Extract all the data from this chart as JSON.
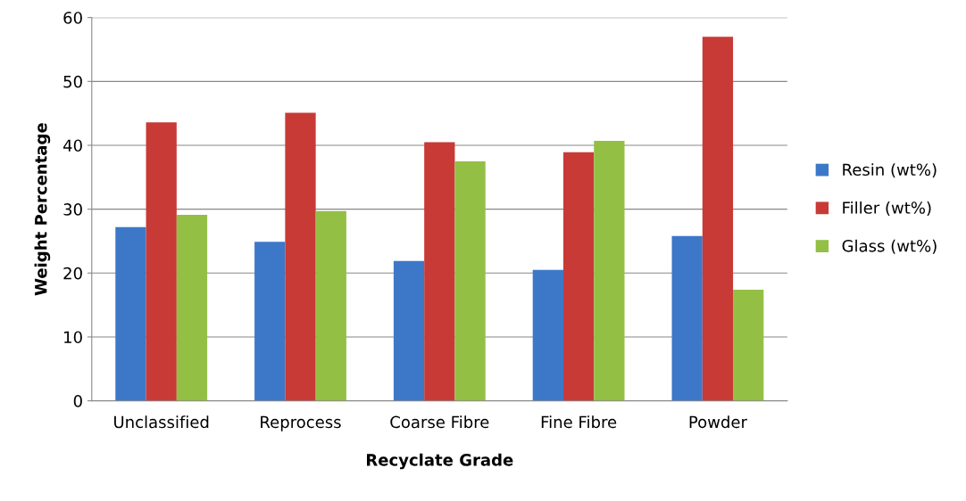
{
  "chart_data": {
    "type": "bar",
    "xlabel": "Recyclate Grade",
    "ylabel": "Weight Percentage",
    "categories": [
      "Unclassified",
      "Reprocess",
      "Coarse Fibre",
      "Fine Fibre",
      "Powder"
    ],
    "series": [
      {
        "name": "Resin (wt%)",
        "color": "#3d78c8",
        "values": [
          27.2,
          24.9,
          21.9,
          20.5,
          25.8
        ]
      },
      {
        "name": "Filler (wt%)",
        "color": "#c83a36",
        "values": [
          43.6,
          45.1,
          40.5,
          38.9,
          57.0
        ]
      },
      {
        "name": "Glass (wt%)",
        "color": "#94bf45",
        "values": [
          29.1,
          29.7,
          37.5,
          40.7,
          17.4
        ]
      }
    ],
    "ylim": [
      0,
      60
    ],
    "yticks": [
      0,
      10,
      20,
      30,
      40,
      50,
      60
    ],
    "grid": "y",
    "legend": "right"
  }
}
